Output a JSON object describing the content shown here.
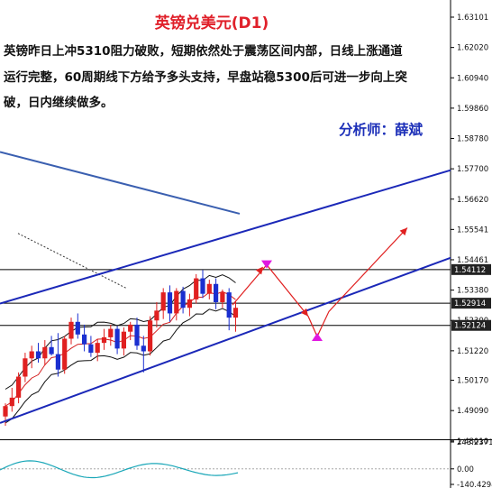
{
  "chart_data": {
    "type": "candlestick",
    "title": "英镑兑美元(D1)",
    "description": [
      "英镑昨日上冲5310阻力破败，短期依然处于震荡区间内部，日线上涨通道",
      "运行完整，60周期线下方给予多头支持，早盘站稳5300后可进一步向上突",
      "破，日内继续做多。"
    ],
    "analyst": "分析师：薛斌",
    "ylim": [
      1.481,
      1.6339
    ],
    "price_ticks": [
      "1.63101",
      "1.62020",
      "1.60940",
      "1.59860",
      "1.58780",
      "1.57700",
      "1.56620",
      "1.55541",
      "1.54461",
      "1.53380",
      "1.52300",
      "1.51220",
      "1.50170",
      "1.49090",
      "1.48010"
    ],
    "price_tags": [
      {
        "label": "1.54112",
        "value": 1.54112,
        "color": "#222222"
      },
      {
        "label": "1.52914",
        "value": 1.52914,
        "color": "#222222"
      },
      {
        "label": "1.52124",
        "value": 1.52124,
        "color": "#222222"
      }
    ],
    "horizontal_lines": [
      1.54112,
      1.52914,
      1.52124
    ],
    "candles": [
      {
        "o": 1.4888,
        "h": 1.4935,
        "l": 1.4855,
        "c": 1.4925
      },
      {
        "o": 1.4925,
        "h": 1.499,
        "l": 1.4905,
        "c": 1.4955
      },
      {
        "o": 1.4955,
        "h": 1.5045,
        "l": 1.4935,
        "c": 1.503
      },
      {
        "o": 1.503,
        "h": 1.5115,
        "l": 1.501,
        "c": 1.5095
      },
      {
        "o": 1.5095,
        "h": 1.514,
        "l": 1.506,
        "c": 1.512
      },
      {
        "o": 1.512,
        "h": 1.515,
        "l": 1.508,
        "c": 1.5095
      },
      {
        "o": 1.5095,
        "h": 1.516,
        "l": 1.507,
        "c": 1.5135
      },
      {
        "o": 1.5135,
        "h": 1.5175,
        "l": 1.5105,
        "c": 1.511
      },
      {
        "o": 1.511,
        "h": 1.5185,
        "l": 1.503,
        "c": 1.5055
      },
      {
        "o": 1.5055,
        "h": 1.5175,
        "l": 1.504,
        "c": 1.5165
      },
      {
        "o": 1.5165,
        "h": 1.524,
        "l": 1.5145,
        "c": 1.5225
      },
      {
        "o": 1.5225,
        "h": 1.5255,
        "l": 1.5165,
        "c": 1.518
      },
      {
        "o": 1.518,
        "h": 1.5215,
        "l": 1.512,
        "c": 1.5145
      },
      {
        "o": 1.5145,
        "h": 1.5175,
        "l": 1.51,
        "c": 1.5115
      },
      {
        "o": 1.5115,
        "h": 1.5165,
        "l": 1.5085,
        "c": 1.515
      },
      {
        "o": 1.515,
        "h": 1.52,
        "l": 1.5125,
        "c": 1.517
      },
      {
        "o": 1.517,
        "h": 1.5215,
        "l": 1.514,
        "c": 1.52
      },
      {
        "o": 1.52,
        "h": 1.521,
        "l": 1.511,
        "c": 1.513
      },
      {
        "o": 1.513,
        "h": 1.5205,
        "l": 1.5105,
        "c": 1.519
      },
      {
        "o": 1.519,
        "h": 1.5225,
        "l": 1.516,
        "c": 1.5215
      },
      {
        "o": 1.5215,
        "h": 1.524,
        "l": 1.5125,
        "c": 1.514
      },
      {
        "o": 1.514,
        "h": 1.5175,
        "l": 1.5045,
        "c": 1.512
      },
      {
        "o": 1.512,
        "h": 1.5245,
        "l": 1.5105,
        "c": 1.523
      },
      {
        "o": 1.523,
        "h": 1.5295,
        "l": 1.5205,
        "c": 1.5265
      },
      {
        "o": 1.5265,
        "h": 1.5345,
        "l": 1.5235,
        "c": 1.533
      },
      {
        "o": 1.533,
        "h": 1.5355,
        "l": 1.5225,
        "c": 1.5255
      },
      {
        "o": 1.5255,
        "h": 1.5345,
        "l": 1.523,
        "c": 1.5335
      },
      {
        "o": 1.5335,
        "h": 1.535,
        "l": 1.5255,
        "c": 1.5275
      },
      {
        "o": 1.5275,
        "h": 1.5325,
        "l": 1.5245,
        "c": 1.5305
      },
      {
        "o": 1.5305,
        "h": 1.5395,
        "l": 1.529,
        "c": 1.538
      },
      {
        "o": 1.538,
        "h": 1.541,
        "l": 1.531,
        "c": 1.5325
      },
      {
        "o": 1.5325,
        "h": 1.5375,
        "l": 1.5305,
        "c": 1.536
      },
      {
        "o": 1.536,
        "h": 1.538,
        "l": 1.527,
        "c": 1.5295
      },
      {
        "o": 1.5295,
        "h": 1.534,
        "l": 1.5275,
        "c": 1.533
      },
      {
        "o": 1.533,
        "h": 1.5345,
        "l": 1.5195,
        "c": 1.524
      },
      {
        "o": 1.524,
        "h": 1.53,
        "l": 1.519,
        "c": 1.5275
      }
    ],
    "channel_upper": {
      "start": 1.529,
      "end": 1.5765
    },
    "channel_lower": {
      "start": 1.4865,
      "end": 1.5453
    },
    "forecast_path": [
      1.5285,
      1.5428,
      1.5245,
      1.5173,
      1.5262,
      1.556
    ],
    "forecast_markers": [
      {
        "value": 1.5428,
        "dir": "down"
      },
      {
        "value": 1.5173,
        "dir": "up"
      }
    ],
    "ma60": {
      "start": 1.583,
      "end": 1.561
    },
    "indicator": {
      "ticks": [
        "243.2371",
        "0.00",
        "-140.4294"
      ],
      "ylim": [
        -140.4294,
        243.2371
      ]
    }
  }
}
